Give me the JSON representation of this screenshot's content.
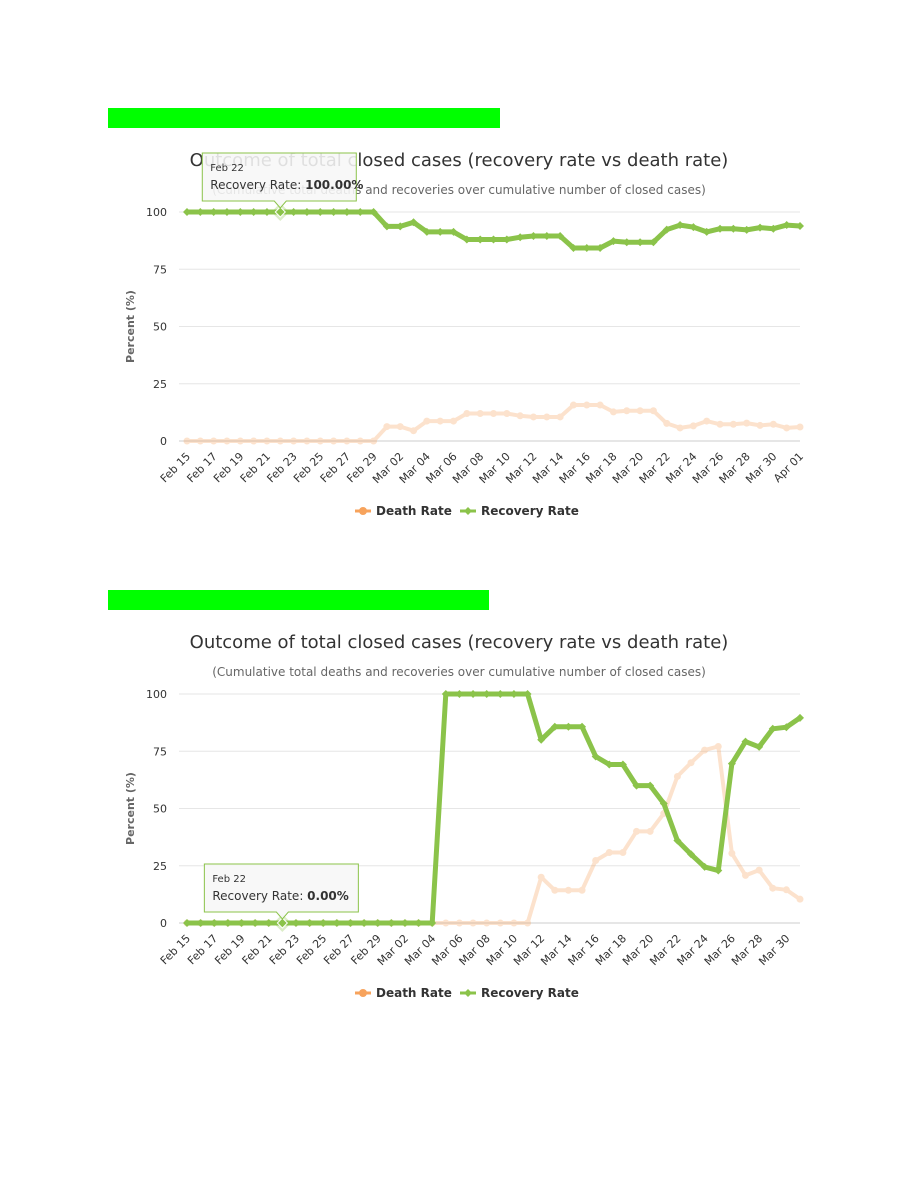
{
  "colors": {
    "highlight_bar": "#00ff00",
    "death": "#f7a35c",
    "recovery": "#8bc34a",
    "grid": "#e6e6e6"
  },
  "chart_data": [
    {
      "type": "line",
      "title": "Outcome of total closed cases (recovery rate vs death rate)",
      "subtitle": "(Cumulative total deaths and recoveries over cumulative number of closed cases)",
      "ylabel": "Percent (%)",
      "ylim": [
        0,
        100
      ],
      "yticks": [
        "0",
        "25",
        "50",
        "75",
        "100"
      ],
      "grid": true,
      "legend_position": "bottom-center",
      "x": [
        "Feb 15",
        "Feb 16",
        "Feb 17",
        "Feb 18",
        "Feb 19",
        "Feb 20",
        "Feb 21",
        "Feb 22",
        "Feb 23",
        "Feb 24",
        "Feb 25",
        "Feb 26",
        "Feb 27",
        "Feb 28",
        "Feb 29",
        "Mar 01",
        "Mar 02",
        "Mar 03",
        "Mar 04",
        "Mar 05",
        "Mar 06",
        "Mar 07",
        "Mar 08",
        "Mar 09",
        "Mar 10",
        "Mar 11",
        "Mar 12",
        "Mar 13",
        "Mar 14",
        "Mar 15",
        "Mar 16",
        "Mar 17",
        "Mar 18",
        "Mar 19",
        "Mar 20",
        "Mar 21",
        "Mar 22",
        "Mar 23",
        "Mar 24",
        "Mar 25",
        "Mar 26",
        "Mar 27",
        "Mar 28",
        "Mar 29",
        "Mar 30",
        "Mar 31",
        "Apr 01"
      ],
      "xtick_labels": [
        "Feb 15",
        "Feb 17",
        "Feb 19",
        "Feb 21",
        "Feb 23",
        "Feb 25",
        "Feb 27",
        "Feb 29",
        "Mar 02",
        "Mar 04",
        "Mar 06",
        "Mar 08",
        "Mar 10",
        "Mar 12",
        "Mar 14",
        "Mar 16",
        "Mar 18",
        "Mar 20",
        "Mar 22",
        "Mar 24",
        "Mar 26",
        "Mar 28",
        "Mar 30",
        "Apr 01"
      ],
      "series": [
        {
          "name": "Death Rate",
          "values": [
            0,
            0,
            0,
            0,
            0,
            0,
            0,
            0,
            0,
            0,
            0,
            0,
            0,
            0,
            0,
            6.3,
            6.3,
            4.5,
            8.7,
            8.7,
            8.7,
            12,
            12,
            12,
            12,
            11,
            10.5,
            10.5,
            10.5,
            15.7,
            15.7,
            15.7,
            12.7,
            13.2,
            13.2,
            13.2,
            7.7,
            5.7,
            6.6,
            8.7,
            7.3,
            7.3,
            7.8,
            6.8,
            7.3,
            5.7,
            6.1
          ]
        },
        {
          "name": "Recovery Rate",
          "values": [
            100,
            100,
            100,
            100,
            100,
            100,
            100,
            100,
            100,
            100,
            100,
            100,
            100,
            100,
            100,
            93.7,
            93.7,
            95.5,
            91.3,
            91.3,
            91.3,
            88,
            88,
            88,
            88,
            89,
            89.5,
            89.5,
            89.5,
            84.3,
            84.3,
            84.3,
            87.3,
            86.8,
            86.8,
            86.8,
            92.3,
            94.3,
            93.4,
            91.3,
            92.7,
            92.7,
            92.2,
            93.2,
            92.7,
            94.3,
            93.9
          ]
        }
      ],
      "tooltip": {
        "date": "Feb 22",
        "label": "Recovery Rate: ",
        "value": "100.00%",
        "series_index": 1,
        "point_index": 7
      }
    },
    {
      "type": "line",
      "title": "Outcome of total closed cases (recovery rate vs death rate)",
      "subtitle": "(Cumulative total deaths and recoveries over cumulative number of closed cases)",
      "ylabel": "Percent (%)",
      "ylim": [
        0,
        100
      ],
      "yticks": [
        "0",
        "25",
        "50",
        "75",
        "100"
      ],
      "grid": true,
      "legend_position": "bottom-center",
      "x": [
        "Feb 15",
        "Feb 16",
        "Feb 17",
        "Feb 18",
        "Feb 19",
        "Feb 20",
        "Feb 21",
        "Feb 22",
        "Feb 23",
        "Feb 24",
        "Feb 25",
        "Feb 26",
        "Feb 27",
        "Feb 28",
        "Feb 29",
        "Mar 01",
        "Mar 02",
        "Mar 03",
        "Mar 04",
        "Mar 05",
        "Mar 06",
        "Mar 07",
        "Mar 08",
        "Mar 09",
        "Mar 10",
        "Mar 11",
        "Mar 12",
        "Mar 13",
        "Mar 14",
        "Mar 15",
        "Mar 16",
        "Mar 17",
        "Mar 18",
        "Mar 19",
        "Mar 20",
        "Mar 21",
        "Mar 22",
        "Mar 23",
        "Mar 24",
        "Mar 25",
        "Mar 26",
        "Mar 27",
        "Mar 28",
        "Mar 29",
        "Mar 30",
        "Mar 31"
      ],
      "xtick_labels": [
        "Feb 15",
        "Feb 17",
        "Feb 19",
        "Feb 21",
        "Feb 23",
        "Feb 25",
        "Feb 27",
        "Feb 29",
        "Mar 02",
        "Mar 04",
        "Mar 06",
        "Mar 08",
        "Mar 10",
        "Mar 12",
        "Mar 14",
        "Mar 16",
        "Mar 18",
        "Mar 20",
        "Mar 22",
        "Mar 24",
        "Mar 26",
        "Mar 28",
        "Mar 30"
      ],
      "series": [
        {
          "name": "Death Rate",
          "values": [
            0,
            0,
            0,
            0,
            0,
            0,
            0,
            0,
            0,
            0,
            0,
            0,
            0,
            0,
            0,
            0,
            0,
            0,
            0,
            0,
            0,
            0,
            0,
            0,
            0,
            0,
            20,
            14.3,
            14.3,
            14.3,
            27.3,
            30.8,
            30.8,
            40,
            40,
            47.8,
            64,
            70,
            75.5,
            77.1,
            30.4,
            20.8,
            23.1,
            15.2,
            14.5,
            10.4
          ]
        },
        {
          "name": "Recovery Rate",
          "values": [
            0,
            0,
            0,
            0,
            0,
            0,
            0,
            0,
            0,
            0,
            0,
            0,
            0,
            0,
            0,
            0,
            0,
            0,
            0,
            100,
            100,
            100,
            100,
            100,
            100,
            100,
            80,
            85.7,
            85.7,
            85.7,
            72.7,
            69.2,
            69.2,
            60,
            60,
            52.2,
            36,
            30,
            24.5,
            22.9,
            69.6,
            79.2,
            76.9,
            84.8,
            85.5,
            89.6
          ]
        }
      ],
      "tooltip": {
        "date": "Feb 22",
        "label": "Recovery Rate: ",
        "value": "0.00%",
        "series_index": 1,
        "point_index": 7
      }
    }
  ]
}
